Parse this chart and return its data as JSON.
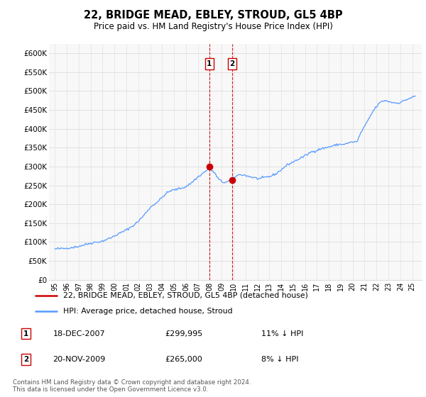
{
  "title": "22, BRIDGE MEAD, EBLEY, STROUD, GL5 4BP",
  "subtitle": "Price paid vs. HM Land Registry's House Price Index (HPI)",
  "title_fontsize": 10.5,
  "subtitle_fontsize": 8.5,
  "ylabel_ticks": [
    "£0",
    "£50K",
    "£100K",
    "£150K",
    "£200K",
    "£250K",
    "£300K",
    "£350K",
    "£400K",
    "£450K",
    "£500K",
    "£550K",
    "£600K"
  ],
  "ylim": [
    0,
    625000
  ],
  "xlim_start": 1994.5,
  "xlim_end": 2025.8,
  "hpi_color": "#5599ff",
  "price_color": "#cc0000",
  "marker_box_color": "#cc0000",
  "transaction1_year": 2007.96,
  "transaction1_price": 299995,
  "transaction2_year": 2009.88,
  "transaction2_price": 265000,
  "legend_line1": "22, BRIDGE MEAD, EBLEY, STROUD, GL5 4BP (detached house)",
  "legend_line2": "HPI: Average price, detached house, Stroud",
  "footer": "Contains HM Land Registry data © Crown copyright and database right 2024.\nThis data is licensed under the Open Government Licence v3.0.",
  "table_row1": [
    "1",
    "18-DEC-2007",
    "£299,995",
    "11% ↓ HPI"
  ],
  "table_row2": [
    "2",
    "20-NOV-2009",
    "£265,000",
    "8% ↓ HPI"
  ],
  "hpi_data": [
    [
      1995.0,
      82000
    ],
    [
      1995.08,
      81500
    ],
    [
      1995.17,
      82200
    ],
    [
      1995.25,
      83000
    ],
    [
      1995.33,
      82800
    ],
    [
      1995.42,
      82300
    ],
    [
      1995.5,
      82500
    ],
    [
      1995.58,
      83100
    ],
    [
      1995.67,
      83400
    ],
    [
      1995.75,
      83000
    ],
    [
      1995.83,
      83200
    ],
    [
      1995.92,
      83800
    ],
    [
      1996.0,
      84000
    ],
    [
      1996.08,
      84500
    ],
    [
      1996.17,
      85200
    ],
    [
      1996.25,
      85000
    ],
    [
      1996.33,
      85500
    ],
    [
      1996.42,
      86200
    ],
    [
      1996.5,
      86000
    ],
    [
      1996.58,
      86500
    ],
    [
      1996.67,
      87200
    ],
    [
      1996.75,
      87000
    ],
    [
      1996.83,
      87500
    ],
    [
      1996.92,
      88200
    ],
    [
      1997.0,
      89000
    ],
    [
      1997.08,
      89800
    ],
    [
      1997.17,
      90500
    ],
    [
      1997.25,
      91000
    ],
    [
      1997.33,
      91800
    ],
    [
      1997.42,
      92500
    ],
    [
      1997.5,
      93000
    ],
    [
      1997.58,
      93800
    ],
    [
      1997.67,
      94500
    ],
    [
      1997.75,
      95000
    ],
    [
      1997.83,
      95800
    ],
    [
      1997.92,
      96500
    ],
    [
      1998.0,
      97000
    ],
    [
      1998.08,
      97800
    ],
    [
      1998.17,
      98500
    ],
    [
      1998.25,
      99000
    ],
    [
      1998.33,
      99500
    ],
    [
      1998.42,
      99800
    ],
    [
      1998.5,
      100000
    ],
    [
      1998.58,
      100500
    ],
    [
      1998.67,
      101000
    ],
    [
      1998.75,
      101000
    ],
    [
      1998.83,
      101200
    ],
    [
      1998.92,
      101500
    ],
    [
      1999.0,
      103000
    ],
    [
      1999.08,
      104000
    ],
    [
      1999.17,
      105000
    ],
    [
      1999.25,
      106000
    ],
    [
      1999.33,
      107000
    ],
    [
      1999.42,
      108000
    ],
    [
      1999.5,
      109000
    ],
    [
      1999.58,
      110000
    ],
    [
      1999.67,
      111000
    ],
    [
      1999.75,
      112000
    ],
    [
      1999.83,
      113500
    ],
    [
      1999.92,
      115000
    ],
    [
      2000.0,
      116000
    ],
    [
      2000.08,
      117500
    ],
    [
      2000.17,
      119000
    ],
    [
      2000.25,
      120000
    ],
    [
      2000.33,
      121500
    ],
    [
      2000.42,
      123000
    ],
    [
      2000.5,
      124000
    ],
    [
      2000.58,
      125500
    ],
    [
      2000.67,
      127000
    ],
    [
      2000.75,
      128000
    ],
    [
      2000.83,
      129500
    ],
    [
      2000.92,
      131000
    ],
    [
      2001.0,
      132000
    ],
    [
      2001.08,
      134000
    ],
    [
      2001.17,
      136000
    ],
    [
      2001.25,
      137000
    ],
    [
      2001.33,
      139000
    ],
    [
      2001.42,
      141000
    ],
    [
      2001.5,
      142000
    ],
    [
      2001.58,
      144000
    ],
    [
      2001.67,
      146000
    ],
    [
      2001.75,
      148000
    ],
    [
      2001.83,
      150500
    ],
    [
      2001.92,
      153000
    ],
    [
      2002.0,
      155000
    ],
    [
      2002.08,
      158000
    ],
    [
      2002.17,
      161000
    ],
    [
      2002.25,
      163000
    ],
    [
      2002.33,
      166000
    ],
    [
      2002.42,
      169000
    ],
    [
      2002.5,
      172000
    ],
    [
      2002.58,
      175500
    ],
    [
      2002.67,
      179000
    ],
    [
      2002.75,
      182000
    ],
    [
      2002.83,
      185500
    ],
    [
      2002.92,
      189000
    ],
    [
      2003.0,
      191000
    ],
    [
      2003.08,
      193500
    ],
    [
      2003.17,
      196000
    ],
    [
      2003.25,
      198000
    ],
    [
      2003.33,
      200000
    ],
    [
      2003.42,
      202000
    ],
    [
      2003.5,
      204000
    ],
    [
      2003.58,
      206000
    ],
    [
      2003.67,
      208000
    ],
    [
      2003.75,
      210000
    ],
    [
      2003.83,
      213000
    ],
    [
      2003.92,
      216000
    ],
    [
      2004.0,
      218000
    ],
    [
      2004.08,
      221000
    ],
    [
      2004.17,
      224000
    ],
    [
      2004.25,
      226000
    ],
    [
      2004.33,
      228000
    ],
    [
      2004.42,
      230000
    ],
    [
      2004.5,
      232000
    ],
    [
      2004.58,
      233500
    ],
    [
      2004.67,
      235000
    ],
    [
      2004.75,
      236000
    ],
    [
      2004.83,
      237000
    ],
    [
      2004.92,
      237500
    ],
    [
      2005.0,
      238000
    ],
    [
      2005.08,
      238500
    ],
    [
      2005.17,
      239000
    ],
    [
      2005.25,
      240000
    ],
    [
      2005.33,
      240500
    ],
    [
      2005.42,
      241000
    ],
    [
      2005.5,
      242000
    ],
    [
      2005.58,
      242500
    ],
    [
      2005.67,
      243000
    ],
    [
      2005.75,
      244000
    ],
    [
      2005.83,
      244800
    ],
    [
      2005.92,
      245500
    ],
    [
      2006.0,
      247000
    ],
    [
      2006.08,
      248500
    ],
    [
      2006.17,
      250000
    ],
    [
      2006.25,
      252000
    ],
    [
      2006.33,
      254000
    ],
    [
      2006.42,
      256000
    ],
    [
      2006.5,
      258000
    ],
    [
      2006.58,
      260500
    ],
    [
      2006.67,
      263000
    ],
    [
      2006.75,
      265000
    ],
    [
      2006.83,
      267500
    ],
    [
      2006.92,
      270000
    ],
    [
      2007.0,
      272000
    ],
    [
      2007.08,
      274000
    ],
    [
      2007.17,
      276000
    ],
    [
      2007.25,
      278000
    ],
    [
      2007.33,
      280000
    ],
    [
      2007.42,
      282000
    ],
    [
      2007.5,
      284000
    ],
    [
      2007.58,
      286000
    ],
    [
      2007.67,
      288000
    ],
    [
      2007.75,
      290000
    ],
    [
      2007.83,
      291500
    ],
    [
      2007.92,
      292500
    ],
    [
      2008.0,
      293000
    ],
    [
      2008.08,
      292000
    ],
    [
      2008.17,
      290000
    ],
    [
      2008.25,
      288000
    ],
    [
      2008.33,
      285000
    ],
    [
      2008.42,
      282000
    ],
    [
      2008.5,
      278000
    ],
    [
      2008.58,
      274000
    ],
    [
      2008.67,
      270000
    ],
    [
      2008.75,
      267000
    ],
    [
      2008.83,
      264000
    ],
    [
      2008.92,
      262000
    ],
    [
      2009.0,
      260000
    ],
    [
      2009.08,
      259000
    ],
    [
      2009.17,
      258500
    ],
    [
      2009.25,
      258000
    ],
    [
      2009.33,
      258500
    ],
    [
      2009.42,
      259000
    ],
    [
      2009.5,
      260000
    ],
    [
      2009.58,
      261000
    ],
    [
      2009.67,
      262500
    ],
    [
      2009.75,
      264000
    ],
    [
      2009.83,
      265500
    ],
    [
      2009.92,
      267500
    ],
    [
      2010.0,
      270000
    ],
    [
      2010.08,
      272000
    ],
    [
      2010.17,
      273500
    ],
    [
      2010.25,
      275000
    ],
    [
      2010.33,
      276500
    ],
    [
      2010.42,
      277500
    ],
    [
      2010.5,
      278000
    ],
    [
      2010.58,
      278500
    ],
    [
      2010.67,
      278500
    ],
    [
      2010.75,
      278000
    ],
    [
      2010.83,
      277500
    ],
    [
      2010.92,
      277000
    ],
    [
      2011.0,
      276000
    ],
    [
      2011.08,
      275500
    ],
    [
      2011.17,
      275000
    ],
    [
      2011.25,
      274000
    ],
    [
      2011.33,
      273500
    ],
    [
      2011.42,
      273000
    ],
    [
      2011.5,
      272000
    ],
    [
      2011.58,
      271500
    ],
    [
      2011.67,
      271000
    ],
    [
      2011.75,
      270000
    ],
    [
      2011.83,
      269500
    ],
    [
      2011.92,
      269000
    ],
    [
      2012.0,
      268000
    ],
    [
      2012.08,
      268000
    ],
    [
      2012.17,
      268000
    ],
    [
      2012.25,
      268000
    ],
    [
      2012.33,
      268500
    ],
    [
      2012.42,
      269000
    ],
    [
      2012.5,
      270000
    ],
    [
      2012.58,
      270500
    ],
    [
      2012.67,
      271000
    ],
    [
      2012.75,
      272000
    ],
    [
      2012.83,
      272500
    ],
    [
      2012.92,
      273000
    ],
    [
      2013.0,
      273000
    ],
    [
      2013.08,
      274000
    ],
    [
      2013.17,
      275000
    ],
    [
      2013.25,
      276000
    ],
    [
      2013.33,
      277500
    ],
    [
      2013.42,
      279000
    ],
    [
      2013.5,
      280000
    ],
    [
      2013.58,
      281500
    ],
    [
      2013.67,
      283000
    ],
    [
      2013.75,
      285000
    ],
    [
      2013.83,
      287500
    ],
    [
      2013.92,
      289500
    ],
    [
      2014.0,
      291000
    ],
    [
      2014.08,
      293500
    ],
    [
      2014.17,
      296000
    ],
    [
      2014.25,
      298000
    ],
    [
      2014.33,
      300000
    ],
    [
      2014.42,
      302000
    ],
    [
      2014.5,
      304000
    ],
    [
      2014.58,
      305500
    ],
    [
      2014.67,
      307000
    ],
    [
      2014.75,
      308000
    ],
    [
      2014.83,
      309500
    ],
    [
      2014.92,
      311000
    ],
    [
      2015.0,
      312000
    ],
    [
      2015.08,
      313500
    ],
    [
      2015.17,
      315000
    ],
    [
      2015.25,
      316000
    ],
    [
      2015.33,
      317500
    ],
    [
      2015.42,
      319000
    ],
    [
      2015.5,
      320000
    ],
    [
      2015.58,
      321500
    ],
    [
      2015.67,
      323000
    ],
    [
      2015.75,
      324000
    ],
    [
      2015.83,
      325500
    ],
    [
      2015.92,
      327000
    ],
    [
      2016.0,
      328000
    ],
    [
      2016.08,
      330000
    ],
    [
      2016.17,
      332000
    ],
    [
      2016.25,
      333000
    ],
    [
      2016.33,
      335000
    ],
    [
      2016.42,
      337000
    ],
    [
      2016.5,
      338000
    ],
    [
      2016.58,
      339000
    ],
    [
      2016.67,
      340000
    ],
    [
      2016.75,
      341000
    ],
    [
      2016.83,
      341500
    ],
    [
      2016.92,
      342000
    ],
    [
      2017.0,
      343000
    ],
    [
      2017.08,
      344000
    ],
    [
      2017.17,
      345000
    ],
    [
      2017.25,
      346000
    ],
    [
      2017.33,
      347000
    ],
    [
      2017.42,
      347500
    ],
    [
      2017.5,
      348000
    ],
    [
      2017.58,
      348500
    ],
    [
      2017.67,
      349000
    ],
    [
      2017.75,
      350000
    ],
    [
      2017.83,
      350500
    ],
    [
      2017.92,
      351000
    ],
    [
      2018.0,
      352000
    ],
    [
      2018.08,
      352500
    ],
    [
      2018.17,
      353000
    ],
    [
      2018.25,
      354000
    ],
    [
      2018.33,
      354500
    ],
    [
      2018.42,
      355000
    ],
    [
      2018.5,
      356000
    ],
    [
      2018.58,
      356500
    ],
    [
      2018.67,
      357000
    ],
    [
      2018.75,
      358000
    ],
    [
      2018.83,
      358500
    ],
    [
      2018.92,
      358800
    ],
    [
      2019.0,
      358000
    ],
    [
      2019.08,
      358500
    ],
    [
      2019.17,
      359000
    ],
    [
      2019.25,
      359000
    ],
    [
      2019.33,
      359500
    ],
    [
      2019.42,
      360000
    ],
    [
      2019.5,
      361000
    ],
    [
      2019.58,
      361500
    ],
    [
      2019.67,
      362000
    ],
    [
      2019.75,
      363000
    ],
    [
      2019.83,
      363500
    ],
    [
      2019.92,
      364500
    ],
    [
      2020.0,
      365000
    ],
    [
      2020.08,
      365000
    ],
    [
      2020.17,
      365000
    ],
    [
      2020.25,
      365000
    ],
    [
      2020.33,
      365000
    ],
    [
      2020.42,
      368000
    ],
    [
      2020.5,
      375000
    ],
    [
      2020.58,
      382000
    ],
    [
      2020.67,
      389000
    ],
    [
      2020.75,
      392000
    ],
    [
      2020.83,
      397000
    ],
    [
      2020.92,
      402000
    ],
    [
      2021.0,
      405000
    ],
    [
      2021.08,
      410000
    ],
    [
      2021.17,
      415000
    ],
    [
      2021.25,
      420000
    ],
    [
      2021.33,
      425000
    ],
    [
      2021.42,
      430000
    ],
    [
      2021.5,
      435000
    ],
    [
      2021.58,
      439000
    ],
    [
      2021.67,
      444000
    ],
    [
      2021.75,
      448000
    ],
    [
      2021.83,
      452000
    ],
    [
      2021.92,
      455000
    ],
    [
      2022.0,
      458000
    ],
    [
      2022.08,
      462000
    ],
    [
      2022.17,
      465000
    ],
    [
      2022.25,
      467000
    ],
    [
      2022.33,
      469500
    ],
    [
      2022.42,
      471500
    ],
    [
      2022.5,
      473000
    ],
    [
      2022.58,
      474000
    ],
    [
      2022.67,
      474500
    ],
    [
      2022.75,
      474000
    ],
    [
      2022.83,
      473500
    ],
    [
      2022.92,
      473000
    ],
    [
      2023.0,
      472000
    ],
    [
      2023.08,
      471500
    ],
    [
      2023.17,
      471000
    ],
    [
      2023.25,
      470000
    ],
    [
      2023.33,
      469500
    ],
    [
      2023.42,
      469000
    ],
    [
      2023.5,
      469000
    ],
    [
      2023.58,
      468500
    ],
    [
      2023.67,
      468000
    ],
    [
      2023.75,
      468000
    ],
    [
      2023.83,
      468500
    ],
    [
      2023.92,
      469000
    ],
    [
      2024.0,
      470000
    ],
    [
      2024.08,
      471000
    ],
    [
      2024.17,
      472000
    ],
    [
      2024.25,
      473000
    ],
    [
      2024.33,
      474000
    ],
    [
      2024.42,
      475000
    ],
    [
      2024.5,
      477000
    ],
    [
      2024.58,
      478000
    ],
    [
      2024.67,
      479000
    ],
    [
      2024.75,
      480000
    ],
    [
      2024.83,
      481000
    ],
    [
      2024.92,
      482000
    ],
    [
      2025.0,
      483000
    ],
    [
      2025.08,
      484000
    ],
    [
      2025.17,
      485000
    ],
    [
      2025.25,
      486000
    ]
  ],
  "price_data": [
    [
      2007.96,
      299995
    ],
    [
      2009.88,
      265000
    ]
  ],
  "bg_color": "#f8f8f8",
  "grid_color": "#dddddd"
}
